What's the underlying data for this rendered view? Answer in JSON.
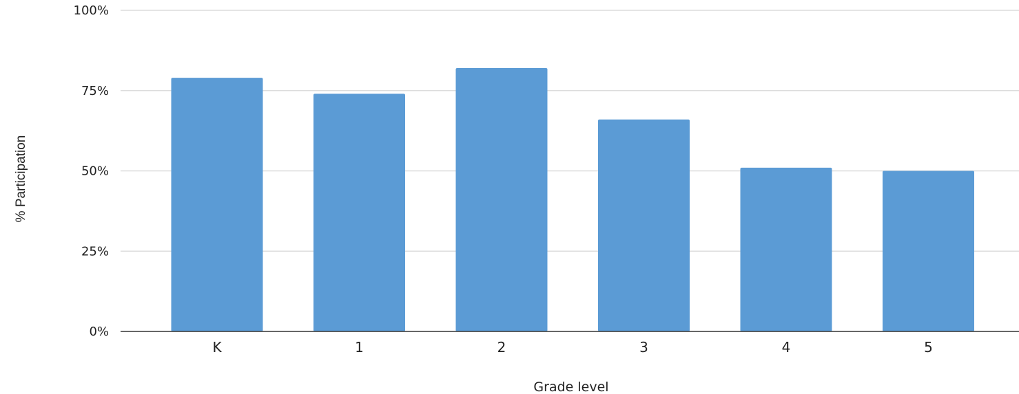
{
  "chart_data": {
    "type": "bar",
    "categories": [
      "K",
      "1",
      "2",
      "3",
      "4",
      "5"
    ],
    "values": [
      79,
      74,
      82,
      66,
      51,
      50
    ],
    "xlabel": "Grade level",
    "ylabel": "% Participation",
    "ylim": [
      0,
      100
    ],
    "yticks": [
      "0%",
      "25%",
      "50%",
      "75%",
      "100%"
    ],
    "ytick_values": [
      0,
      25,
      50,
      75,
      100
    ],
    "grid": true,
    "legend": "none",
    "bar_color": "#5b9bd5"
  }
}
